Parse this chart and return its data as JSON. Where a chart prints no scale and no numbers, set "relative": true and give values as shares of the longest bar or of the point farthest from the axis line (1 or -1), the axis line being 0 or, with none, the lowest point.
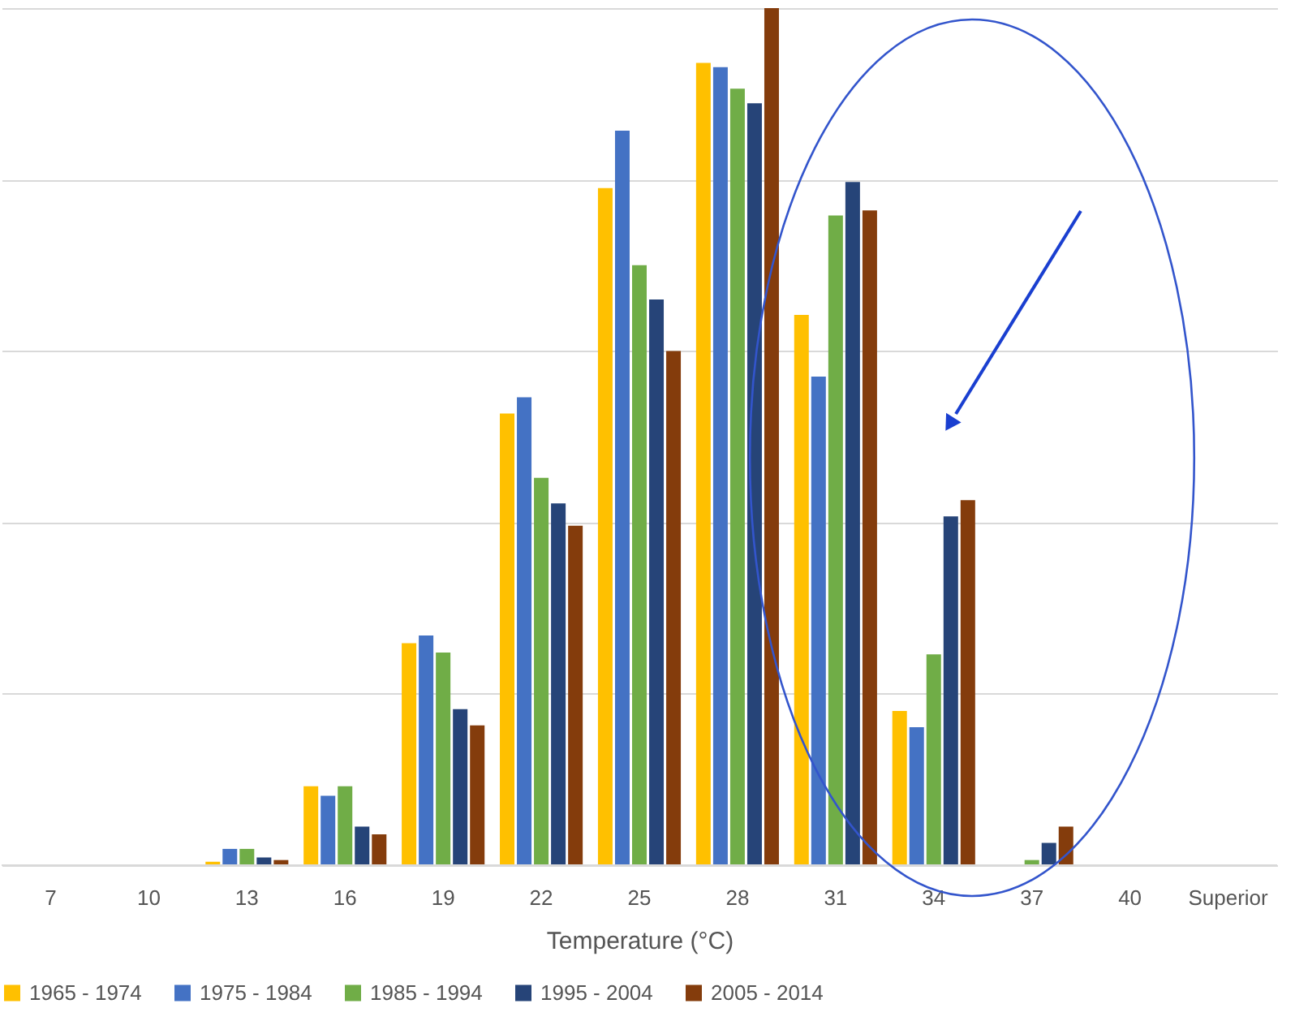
{
  "chart_data": {
    "type": "bar",
    "relative": true,
    "xlabel": "Temperature (°C)",
    "categories": [
      "7",
      "10",
      "13",
      "16",
      "19",
      "22",
      "25",
      "28",
      "31",
      "34",
      "37",
      "40",
      "Superior"
    ],
    "series": [
      {
        "name": "1965 - 1974",
        "color": "#ffc000",
        "values": [
          0,
          0,
          0.004,
          0.092,
          0.259,
          0.527,
          0.79,
          0.936,
          0.642,
          0.18,
          null,
          0,
          0
        ]
      },
      {
        "name": "1975 - 1984",
        "color": "#4472c4",
        "values": [
          0,
          0,
          0.019,
          0.081,
          0.268,
          0.546,
          0.857,
          0.931,
          0.57,
          0.161,
          null,
          0,
          0
        ]
      },
      {
        "name": "1985 - 1994",
        "color": "#70ad47",
        "values": [
          0,
          0,
          0.019,
          0.092,
          0.248,
          0.452,
          0.7,
          0.906,
          0.758,
          0.246,
          0.006,
          0,
          0
        ]
      },
      {
        "name": "1995 - 2004",
        "color": "#264478",
        "values": [
          0,
          0,
          0.009,
          0.045,
          0.182,
          0.422,
          0.66,
          0.889,
          0.797,
          0.407,
          0.026,
          0,
          0
        ]
      },
      {
        "name": "2005 - 2014",
        "color": "#843c0c",
        "values": [
          0,
          0,
          0.006,
          0.036,
          0.163,
          0.396,
          0.6,
          1,
          0.764,
          0.426,
          0.045,
          0,
          0
        ]
      }
    ],
    "grid": "y",
    "legend": "bottom"
  }
}
